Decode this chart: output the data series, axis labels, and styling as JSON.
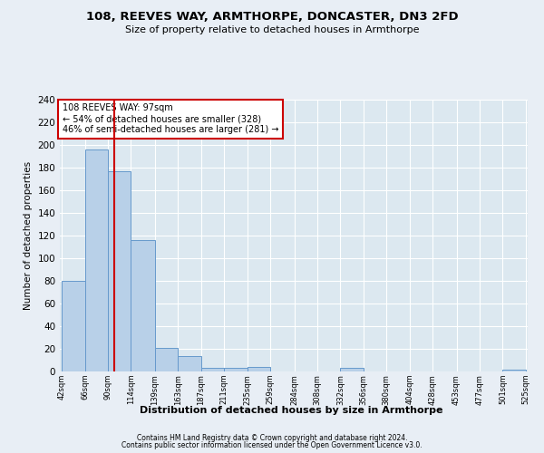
{
  "title": "108, REEVES WAY, ARMTHORPE, DONCASTER, DN3 2FD",
  "subtitle": "Size of property relative to detached houses in Armthorpe",
  "xlabel": "Distribution of detached houses by size in Armthorpe",
  "ylabel": "Number of detached properties",
  "bin_edges": [
    42,
    66,
    90,
    114,
    139,
    163,
    187,
    211,
    235,
    259,
    284,
    308,
    332,
    356,
    380,
    404,
    428,
    453,
    477,
    501,
    525
  ],
  "bar_heights": [
    80,
    196,
    177,
    116,
    21,
    14,
    3,
    3,
    4,
    0,
    0,
    0,
    3,
    0,
    0,
    0,
    0,
    0,
    0,
    2
  ],
  "bar_color": "#b8d0e8",
  "bar_edgecolor": "#6699cc",
  "property_size": 97,
  "red_line_color": "#cc0000",
  "annotation_text": "108 REEVES WAY: 97sqm\n← 54% of detached houses are smaller (328)\n46% of semi-detached houses are larger (281) →",
  "annotation_box_edgecolor": "#cc0000",
  "annotation_fill_color": "#ffffff",
  "ylim": [
    0,
    240
  ],
  "yticks": [
    0,
    20,
    40,
    60,
    80,
    100,
    120,
    140,
    160,
    180,
    200,
    220,
    240
  ],
  "footer1": "Contains HM Land Registry data © Crown copyright and database right 2024.",
  "footer2": "Contains public sector information licensed under the Open Government Licence v3.0.",
  "fig_bg_color": "#e8eef5",
  "plot_bg_color": "#dce8f0",
  "grid_color": "#ffffff"
}
